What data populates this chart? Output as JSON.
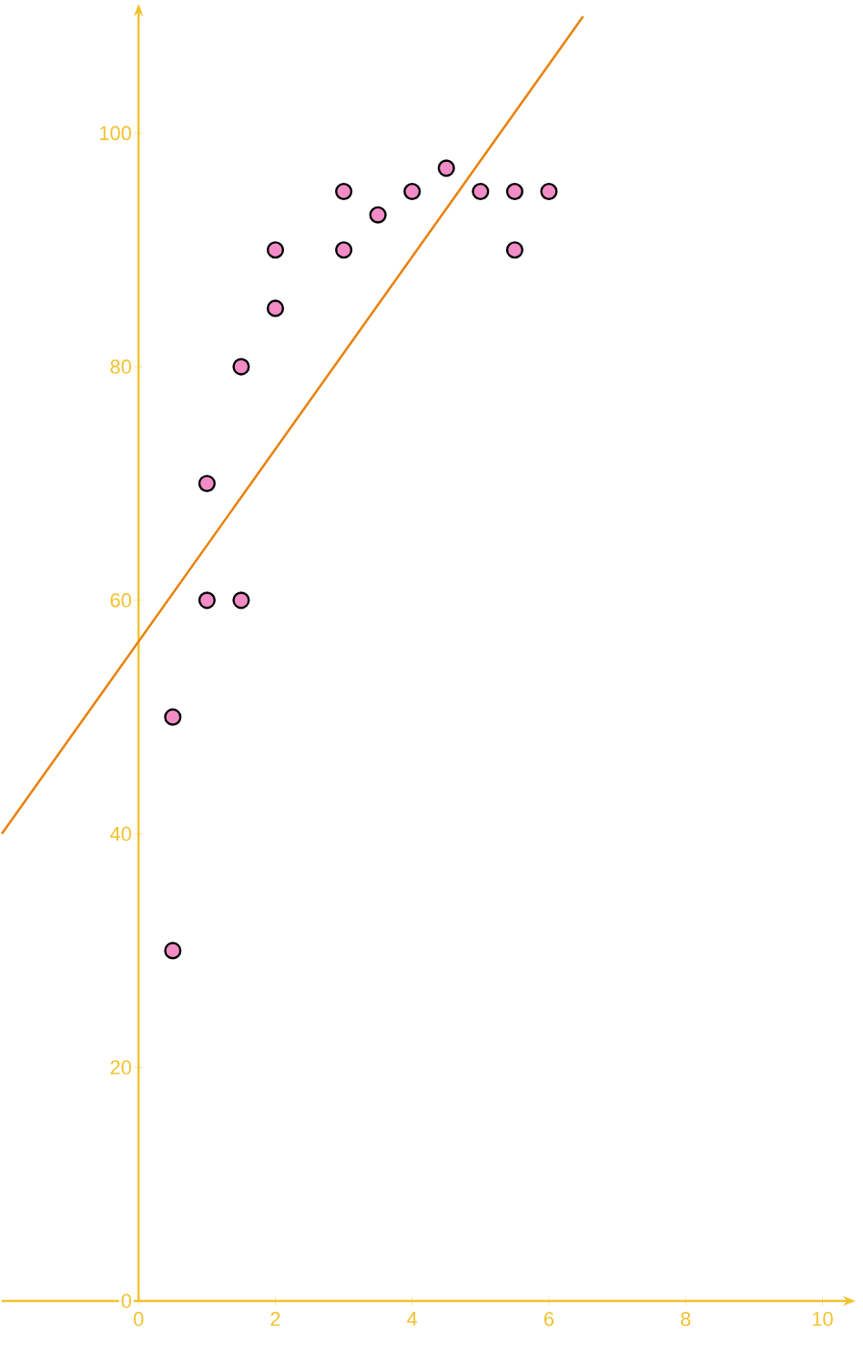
{
  "chart_data": {
    "type": "scatter",
    "xlim": [
      -2,
      10.3
    ],
    "ylim": [
      0,
      110
    ],
    "xticks": [
      0,
      2,
      4,
      6,
      8,
      10
    ],
    "yticks": [
      0,
      20,
      40,
      60,
      80,
      100
    ],
    "series": [
      {
        "marker": "circle",
        "color": "#f28cc6",
        "x": [
          0.5,
          0.5,
          1,
          1,
          1.5,
          1.5,
          2,
          2,
          3,
          3,
          3.5,
          4,
          4.5,
          5,
          5.5,
          5.5,
          6
        ],
        "values": [
          30,
          50,
          60,
          70,
          60,
          80,
          85,
          90,
          90,
          95,
          93,
          95,
          97,
          95,
          95,
          90,
          95
        ]
      },
      {
        "type": "line",
        "marker": "none",
        "color": "#e8820c",
        "x": [
          -2,
          6.5
        ],
        "values": [
          40,
          110
        ]
      }
    ]
  }
}
